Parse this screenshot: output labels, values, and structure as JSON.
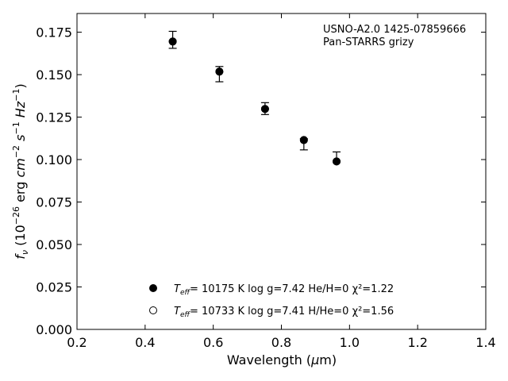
{
  "chart_data": {
    "type": "scatter",
    "title": "",
    "xlabel": "Wavelength (μm)",
    "ylabel": "f_ν (10^-26 erg cm^-2 s^-1 Hz^-1)",
    "xlim": [
      0.2,
      1.4
    ],
    "ylim": [
      0.0,
      0.186
    ],
    "xticks": [
      "0.2",
      "0.4",
      "0.6",
      "0.8",
      "1.0",
      "1.2",
      "1.4"
    ],
    "yticks": [
      "0.000",
      "0.025",
      "0.050",
      "0.075",
      "0.100",
      "0.125",
      "0.150",
      "0.175"
    ],
    "grid": false,
    "annotation": [
      "USNO-A2.0 1425-07859666",
      "Pan-STARRS grizy"
    ],
    "observed": {
      "x": [
        0.481,
        0.618,
        0.752,
        0.866,
        0.962
      ],
      "y_low": [
        0.1655,
        0.1458,
        0.1265,
        0.1057,
        0.0989
      ],
      "y_high": [
        0.1755,
        0.1548,
        0.1335,
        0.1123,
        0.1045
      ]
    },
    "series": [
      {
        "marker": "filled-circle",
        "legend_text": "= 10175 K  log g=7.42  He/H=0  χ²=1.22",
        "teff": "10175",
        "logg": "7.42",
        "comp": "He/H=0",
        "chi2": "1.22",
        "x": [
          0.481,
          0.618,
          0.752,
          0.866,
          0.962
        ],
        "y": [
          0.1695,
          0.1518,
          0.1298,
          0.1115,
          0.0989
        ]
      },
      {
        "marker": "open-circle",
        "legend_text": "= 10733 K  log g=7.41  H/He=0  χ²=1.56",
        "teff": "10733",
        "logg": "7.41",
        "comp": "H/He=0",
        "chi2": "1.56",
        "x": [
          0.481,
          0.618,
          0.752,
          0.866,
          0.962
        ],
        "y": [
          0.1695,
          0.1518,
          0.1298,
          0.1115,
          0.0989
        ]
      }
    ],
    "legend_position": "bottom-center"
  }
}
